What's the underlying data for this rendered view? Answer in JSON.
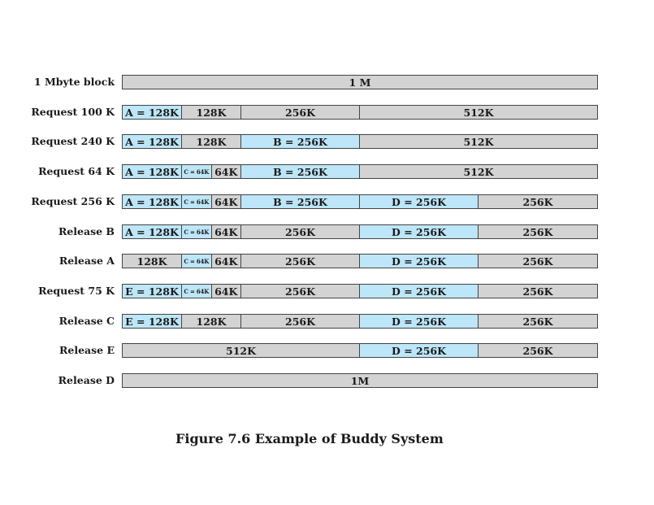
{
  "rows": [
    {
      "label": "1 Mbyte block",
      "segments": [
        {
          "text": "1 M",
          "size_kb": 1024,
          "state": "free"
        }
      ]
    },
    {
      "label": "Request 100 K",
      "segments": [
        {
          "text": "A = 128K",
          "size_kb": 128,
          "state": "allocated"
        },
        {
          "text": "128K",
          "size_kb": 128,
          "state": "free"
        },
        {
          "text": "256K",
          "size_kb": 256,
          "state": "free"
        },
        {
          "text": "512K",
          "size_kb": 512,
          "state": "free"
        }
      ]
    },
    {
      "label": "Request 240 K",
      "segments": [
        {
          "text": "A = 128K",
          "size_kb": 128,
          "state": "allocated"
        },
        {
          "text": "128K",
          "size_kb": 128,
          "state": "free"
        },
        {
          "text": "B = 256K",
          "size_kb": 256,
          "state": "allocated"
        },
        {
          "text": "512K",
          "size_kb": 512,
          "state": "free"
        }
      ]
    },
    {
      "label": "Request 64 K",
      "segments": [
        {
          "text": "A = 128K",
          "size_kb": 128,
          "state": "allocated"
        },
        {
          "text": "C = 64K",
          "size_kb": 64,
          "state": "allocated"
        },
        {
          "text": "64K",
          "size_kb": 64,
          "state": "free"
        },
        {
          "text": "B = 256K",
          "size_kb": 256,
          "state": "allocated"
        },
        {
          "text": "512K",
          "size_kb": 512,
          "state": "free"
        }
      ]
    },
    {
      "label": "Request 256 K",
      "segments": [
        {
          "text": "A = 128K",
          "size_kb": 128,
          "state": "allocated"
        },
        {
          "text": "C = 64K",
          "size_kb": 64,
          "state": "allocated"
        },
        {
          "text": "64K",
          "size_kb": 64,
          "state": "free"
        },
        {
          "text": "B = 256K",
          "size_kb": 256,
          "state": "allocated"
        },
        {
          "text": "D = 256K",
          "size_kb": 256,
          "state": "allocated"
        },
        {
          "text": "256K",
          "size_kb": 256,
          "state": "free"
        }
      ]
    },
    {
      "label": "Release B",
      "segments": [
        {
          "text": "A = 128K",
          "size_kb": 128,
          "state": "allocated"
        },
        {
          "text": "C = 64K",
          "size_kb": 64,
          "state": "allocated"
        },
        {
          "text": "64K",
          "size_kb": 64,
          "state": "free"
        },
        {
          "text": "256K",
          "size_kb": 256,
          "state": "free"
        },
        {
          "text": "D = 256K",
          "size_kb": 256,
          "state": "allocated"
        },
        {
          "text": "256K",
          "size_kb": 256,
          "state": "free"
        }
      ]
    },
    {
      "label": "Release A",
      "segments": [
        {
          "text": "128K",
          "size_kb": 128,
          "state": "free"
        },
        {
          "text": "C = 64K",
          "size_kb": 64,
          "state": "allocated"
        },
        {
          "text": "64K",
          "size_kb": 64,
          "state": "free"
        },
        {
          "text": "256K",
          "size_kb": 256,
          "state": "free"
        },
        {
          "text": "D = 256K",
          "size_kb": 256,
          "state": "allocated"
        },
        {
          "text": "256K",
          "size_kb": 256,
          "state": "free"
        }
      ]
    },
    {
      "label": "Request 75 K",
      "segments": [
        {
          "text": "E = 128K",
          "size_kb": 128,
          "state": "allocated"
        },
        {
          "text": "C = 64K",
          "size_kb": 64,
          "state": "allocated"
        },
        {
          "text": "64K",
          "size_kb": 64,
          "state": "free"
        },
        {
          "text": "256K",
          "size_kb": 256,
          "state": "free"
        },
        {
          "text": "D = 256K",
          "size_kb": 256,
          "state": "allocated"
        },
        {
          "text": "256K",
          "size_kb": 256,
          "state": "free"
        }
      ]
    },
    {
      "label": "Release C",
      "segments": [
        {
          "text": "E = 128K",
          "size_kb": 128,
          "state": "allocated"
        },
        {
          "text": "128K",
          "size_kb": 128,
          "state": "free"
        },
        {
          "text": "256K",
          "size_kb": 256,
          "state": "free"
        },
        {
          "text": "D = 256K",
          "size_kb": 256,
          "state": "allocated"
        },
        {
          "text": "256K",
          "size_kb": 256,
          "state": "free"
        }
      ]
    },
    {
      "label": "Release E",
      "segments": [
        {
          "text": "512K",
          "size_kb": 512,
          "state": "free"
        },
        {
          "text": "D = 256K",
          "size_kb": 256,
          "state": "allocated"
        },
        {
          "text": "256K",
          "size_kb": 256,
          "state": "free"
        }
      ]
    },
    {
      "label": "Release D",
      "segments": [
        {
          "text": "1M",
          "size_kb": 1024,
          "state": "free"
        }
      ]
    }
  ],
  "colors": {
    "allocated": "#bde6f8",
    "free": "#d3d3d3"
  },
  "caption": "Figure 7.6   Example of Buddy System"
}
